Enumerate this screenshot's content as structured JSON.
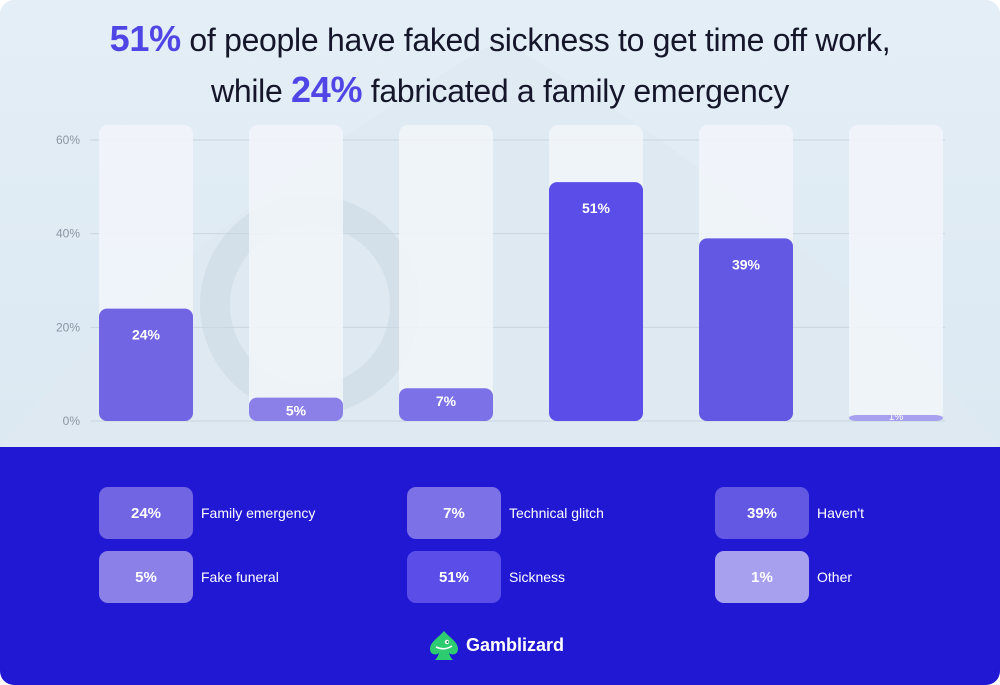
{
  "title": {
    "line1_highlight": "51%",
    "line1_text": " of people have faked sickness to get time off work,",
    "line2_prefix": "while ",
    "line2_highlight": "24%",
    "line2_text": " fabricated a family emergency"
  },
  "chart_data": {
    "type": "bar",
    "title": "51% of people have faked sickness to get time off work, while 24% fabricated a family emergency",
    "categories": [
      "Family emergency",
      "Fake funeral",
      "Technical glitch",
      "Sickness",
      "Haven't",
      "Other"
    ],
    "values": [
      24,
      5,
      7,
      51,
      39,
      1
    ],
    "data_labels": [
      "24%",
      "5%",
      "7%",
      "51%",
      "39%",
      "1%"
    ],
    "ylim": [
      0,
      60
    ],
    "yticks": [
      0,
      20,
      40,
      60
    ],
    "ytick_labels": [
      "0%",
      "20%",
      "40%",
      "60%"
    ],
    "xlabel": "",
    "ylabel": "",
    "grid": true,
    "legend_position": "bottom"
  },
  "colors": {
    "accent": "#4f46e5",
    "bottom_bg": "#2018d2",
    "bar_colors": [
      "#7165e4",
      "#8a80e8",
      "#7c71e6",
      "#5b4de8",
      "#6258e4",
      "#a6a0ee"
    ],
    "track": "#f2f6fa"
  },
  "legend": [
    {
      "value": "24%",
      "label": "Family emergency",
      "color": "#7165e4"
    },
    {
      "value": "7%",
      "label": "Technical glitch",
      "color": "#7c71e6"
    },
    {
      "value": "39%",
      "label": "Haven't",
      "color": "#6258e4"
    },
    {
      "value": "5%",
      "label": "Fake funeral",
      "color": "#8a80e8"
    },
    {
      "value": "51%",
      "label": "Sickness",
      "color": "#5b4de8"
    },
    {
      "value": "1%",
      "label": "Other",
      "color": "#a6a0ee"
    }
  ],
  "brand": {
    "name": "Gamblizard",
    "logo_icon": "lizard-spade-icon"
  }
}
